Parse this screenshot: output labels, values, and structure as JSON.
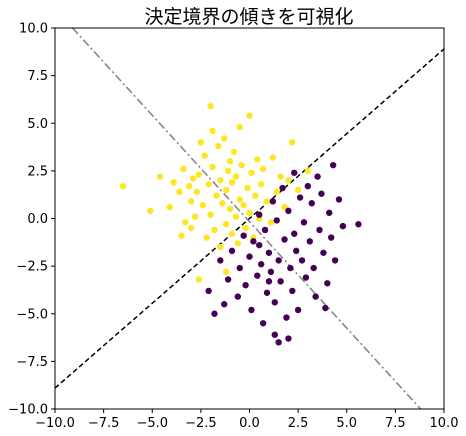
{
  "chart_data": {
    "type": "scatter",
    "title": "決定境界の傾きを可視化",
    "xlabel": "",
    "ylabel": "",
    "xlim": [
      -10,
      10
    ],
    "ylim": [
      -10,
      10
    ],
    "grid": false,
    "xticks": [
      "−10.0",
      "−7.5",
      "−5.0",
      "−2.5",
      "0.0",
      "2.5",
      "5.0",
      "7.5",
      "10.0"
    ],
    "yticks": [
      "−10.0",
      "−7.5",
      "−5.0",
      "−2.5",
      "0.0",
      "2.5",
      "5.0",
      "7.5",
      "10.0"
    ],
    "xtick_values": [
      -10,
      -7.5,
      -5,
      -2.5,
      0,
      2.5,
      5,
      7.5,
      10
    ],
    "ytick_values": [
      -10,
      -7.5,
      -5,
      -2.5,
      0,
      2.5,
      5,
      7.5,
      10
    ],
    "colors": {
      "class0": "#440154",
      "class1": "#fde725",
      "boundary": "#000000",
      "perpendicular": "#808080"
    },
    "lines": [
      {
        "style": "dashed",
        "color": "#000000",
        "points": [
          [
            -10,
            -8.9
          ],
          [
            10,
            8.9
          ]
        ]
      },
      {
        "style": "dashdot",
        "color": "#808080",
        "points": [
          [
            -9.1,
            10
          ],
          [
            8.8,
            -10
          ]
        ]
      }
    ],
    "series": [
      {
        "class": 1,
        "color": "#fde725",
        "points": [
          [
            -6.5,
            1.7
          ],
          [
            -5.1,
            0.4
          ],
          [
            -4.6,
            2.2
          ],
          [
            -4.1,
            0.6
          ],
          [
            -3.9,
            1.9
          ],
          [
            -3.6,
            1.4
          ],
          [
            -3.5,
            -0.9
          ],
          [
            -3.4,
            2.6
          ],
          [
            -3.3,
            -0.2
          ],
          [
            -3.1,
            1.7
          ],
          [
            -3.0,
            0.9
          ],
          [
            -3.0,
            -0.5
          ],
          [
            -2.9,
            2.1
          ],
          [
            -2.8,
            0.1
          ],
          [
            -2.7,
            1.4
          ],
          [
            -2.6,
            2.3
          ],
          [
            -2.5,
            4.0
          ],
          [
            -2.4,
            0.7
          ],
          [
            -2.3,
            3.3
          ],
          [
            -2.2,
            -1.0
          ],
          [
            -2.1,
            1.8
          ],
          [
            -2.0,
            5.9
          ],
          [
            -2.0,
            0.2
          ],
          [
            -1.9,
            4.6
          ],
          [
            -1.9,
            2.7
          ],
          [
            -1.8,
            -0.6
          ],
          [
            -1.7,
            1.2
          ],
          [
            -1.6,
            3.8
          ],
          [
            -1.5,
            2.0
          ],
          [
            -1.5,
            -1.5
          ],
          [
            -1.4,
            0.8
          ],
          [
            -1.3,
            4.2
          ],
          [
            -1.2,
            1.5
          ],
          [
            -1.2,
            -0.3
          ],
          [
            -1.1,
            2.5
          ],
          [
            -1.0,
            3.0
          ],
          [
            -1.0,
            0.5
          ],
          [
            -0.9,
            -0.8
          ],
          [
            -0.9,
            1.9
          ],
          [
            -0.8,
            3.5
          ],
          [
            -0.7,
            0.1
          ],
          [
            -0.7,
            2.2
          ],
          [
            -0.6,
            -1.3
          ],
          [
            -0.5,
            1.0
          ],
          [
            -0.5,
            4.8
          ],
          [
            -0.4,
            2.8
          ],
          [
            -0.3,
            0.7
          ],
          [
            -0.2,
            -0.5
          ],
          [
            -0.1,
            1.6
          ],
          [
            0.0,
            5.4
          ],
          [
            0.0,
            0.3
          ],
          [
            0.1,
            2.4
          ],
          [
            0.2,
            -1.0
          ],
          [
            0.3,
            1.2
          ],
          [
            0.4,
            3.1
          ],
          [
            0.5,
            0.0
          ],
          [
            0.6,
            1.8
          ],
          [
            0.7,
            2.6
          ],
          [
            0.9,
            0.9
          ],
          [
            1.1,
            -0.2
          ],
          [
            1.2,
            3.2
          ],
          [
            1.4,
            1.4
          ],
          [
            1.6,
            2.2
          ],
          [
            1.8,
            0.6
          ],
          [
            2.0,
            2.0
          ],
          [
            2.2,
            4.0
          ],
          [
            2.5,
            1.5
          ],
          [
            3.0,
            2.5
          ],
          [
            -2.6,
            -3.2
          ],
          [
            -1.2,
            -2.8
          ]
        ]
      },
      {
        "class": 0,
        "color": "#440154",
        "points": [
          [
            -2.1,
            -3.8
          ],
          [
            -1.8,
            -5.0
          ],
          [
            -1.5,
            -2.2
          ],
          [
            -1.3,
            -4.5
          ],
          [
            -1.1,
            -3.2
          ],
          [
            -0.9,
            -1.7
          ],
          [
            -0.6,
            -4.1
          ],
          [
            -0.5,
            -2.6
          ],
          [
            -0.3,
            -0.9
          ],
          [
            -0.2,
            -3.5
          ],
          [
            0.0,
            -2.0
          ],
          [
            0.1,
            -4.8
          ],
          [
            0.2,
            -1.2
          ],
          [
            0.4,
            -3.0
          ],
          [
            0.5,
            0.2
          ],
          [
            0.6,
            -2.4
          ],
          [
            0.7,
            -5.5
          ],
          [
            0.8,
            -0.6
          ],
          [
            0.9,
            -3.9
          ],
          [
            1.0,
            -1.8
          ],
          [
            1.1,
            -2.8
          ],
          [
            1.2,
            0.9
          ],
          [
            1.3,
            -4.4
          ],
          [
            1.3,
            -6.1
          ],
          [
            1.4,
            -0.1
          ],
          [
            1.5,
            -6.5
          ],
          [
            1.5,
            -2.2
          ],
          [
            1.6,
            -3.3
          ],
          [
            1.7,
            1.6
          ],
          [
            1.8,
            -1.1
          ],
          [
            1.9,
            -5.2
          ],
          [
            2.0,
            0.4
          ],
          [
            2.1,
            -2.6
          ],
          [
            2.2,
            -3.8
          ],
          [
            2.3,
            -0.8
          ],
          [
            2.3,
            2.4
          ],
          [
            2.4,
            -1.7
          ],
          [
            2.5,
            -4.8
          ],
          [
            2.6,
            1.1
          ],
          [
            2.7,
            -2.2
          ],
          [
            2.8,
            -0.2
          ],
          [
            2.9,
            -3.1
          ],
          [
            3.0,
            1.7
          ],
          [
            3.1,
            -1.2
          ],
          [
            3.2,
            0.8
          ],
          [
            3.3,
            -2.6
          ],
          [
            3.4,
            -4.1
          ],
          [
            3.5,
            2.2
          ],
          [
            3.6,
            -0.6
          ],
          [
            3.7,
            1.3
          ],
          [
            3.8,
            -1.8
          ],
          [
            4.0,
            -3.4
          ],
          [
            4.1,
            0.3
          ],
          [
            4.2,
            -1.0
          ],
          [
            4.3,
            2.8
          ],
          [
            4.4,
            -2.2
          ],
          [
            4.6,
            1.0
          ],
          [
            4.8,
            -0.4
          ],
          [
            5.6,
            -0.3
          ],
          [
            3.9,
            -4.7
          ],
          [
            2.0,
            -6.3
          ],
          [
            0.5,
            -1.4
          ],
          [
            1.0,
            -3.3
          ]
        ]
      }
    ]
  }
}
